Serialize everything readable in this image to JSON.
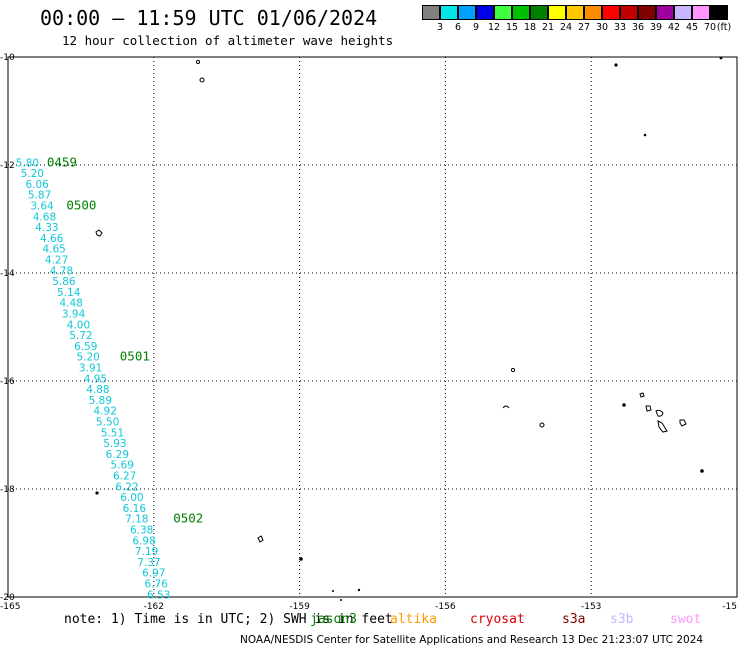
{
  "title": "00:00 — 11:59 UTC 01/06/2024",
  "subtitle": "12 hour collection of altimeter wave heights",
  "legend": {
    "unit": "(ft)",
    "bins": [
      {
        "label": "3",
        "color": "#808080"
      },
      {
        "label": "6",
        "color": "#00e6e6"
      },
      {
        "label": "9",
        "color": "#00a0ff"
      },
      {
        "label": "12",
        "color": "#0000e6"
      },
      {
        "label": "15",
        "color": "#40ff40"
      },
      {
        "label": "18",
        "color": "#00c000"
      },
      {
        "label": "21",
        "color": "#008000"
      },
      {
        "label": "24",
        "color": "#ffff00"
      },
      {
        "label": "27",
        "color": "#ffc800"
      },
      {
        "label": "30",
        "color": "#ff8c00"
      },
      {
        "label": "33",
        "color": "#ff0000"
      },
      {
        "label": "36",
        "color": "#c00000"
      },
      {
        "label": "39",
        "color": "#800000"
      },
      {
        "label": "42",
        "color": "#a000a0"
      },
      {
        "label": "45",
        "color": "#c8b4ff"
      },
      {
        "label": "70",
        "color": "#ff96ff"
      },
      {
        "label": "",
        "color": "#000000"
      }
    ]
  },
  "axes": {
    "lon_min": -165,
    "lon_max": -150,
    "lat_min": -20,
    "lat_max": -10,
    "y_ticks": [
      "-10",
      "-12",
      "-14",
      "-16",
      "-18",
      "-20"
    ],
    "x_ticks": [
      "-165",
      "-162",
      "-159",
      "-156",
      "-153",
      "-15"
    ],
    "grid": "dotted"
  },
  "track": {
    "color": "#10c8d8",
    "points": [
      {
        "lon": -164.6,
        "lat": -11.95,
        "value": "5.80"
      },
      {
        "lon": -164.5,
        "lat": -12.15,
        "value": "5.20"
      },
      {
        "lon": -164.4,
        "lat": -12.35,
        "value": "6.06"
      },
      {
        "lon": -164.35,
        "lat": -12.55,
        "value": "5.87"
      },
      {
        "lon": -164.3,
        "lat": -12.75,
        "value": "3.64"
      },
      {
        "lon": -164.25,
        "lat": -12.95,
        "value": "4.68"
      },
      {
        "lon": -164.2,
        "lat": -13.15,
        "value": "4.33"
      },
      {
        "lon": -164.1,
        "lat": -13.35,
        "value": "4.66"
      },
      {
        "lon": -164.05,
        "lat": -13.55,
        "value": "4.65"
      },
      {
        "lon": -164.0,
        "lat": -13.75,
        "value": "4.27"
      },
      {
        "lon": -163.9,
        "lat": -13.95,
        "value": "4.78"
      },
      {
        "lon": -163.85,
        "lat": -14.15,
        "value": "5.86"
      },
      {
        "lon": -163.75,
        "lat": -14.35,
        "value": "5.14"
      },
      {
        "lon": -163.7,
        "lat": -14.55,
        "value": "4.48"
      },
      {
        "lon": -163.65,
        "lat": -14.75,
        "value": "3.94"
      },
      {
        "lon": -163.55,
        "lat": -14.95,
        "value": "4.00"
      },
      {
        "lon": -163.5,
        "lat": -15.15,
        "value": "5.72"
      },
      {
        "lon": -163.4,
        "lat": -15.35,
        "value": "6.59"
      },
      {
        "lon": -163.35,
        "lat": -15.55,
        "value": "5.20"
      },
      {
        "lon": -163.3,
        "lat": -15.75,
        "value": "3.91"
      },
      {
        "lon": -163.2,
        "lat": -15.95,
        "value": "4.95"
      },
      {
        "lon": -163.15,
        "lat": -16.15,
        "value": "4.88"
      },
      {
        "lon": -163.1,
        "lat": -16.35,
        "value": "5.89"
      },
      {
        "lon": -163.0,
        "lat": -16.55,
        "value": "4.92"
      },
      {
        "lon": -162.95,
        "lat": -16.75,
        "value": "5.50"
      },
      {
        "lon": -162.85,
        "lat": -16.95,
        "value": "5.51"
      },
      {
        "lon": -162.8,
        "lat": -17.15,
        "value": "5.93"
      },
      {
        "lon": -162.75,
        "lat": -17.35,
        "value": "6.29"
      },
      {
        "lon": -162.65,
        "lat": -17.55,
        "value": "5.69"
      },
      {
        "lon": -162.6,
        "lat": -17.75,
        "value": "6.27"
      },
      {
        "lon": -162.55,
        "lat": -17.95,
        "value": "6.22"
      },
      {
        "lon": -162.45,
        "lat": -18.15,
        "value": "6.00"
      },
      {
        "lon": -162.4,
        "lat": -18.35,
        "value": "6.16"
      },
      {
        "lon": -162.35,
        "lat": -18.55,
        "value": "7.18"
      },
      {
        "lon": -162.25,
        "lat": -18.75,
        "value": "6.38"
      },
      {
        "lon": -162.2,
        "lat": -18.95,
        "value": "6.98"
      },
      {
        "lon": -162.15,
        "lat": -19.15,
        "value": "7.19"
      },
      {
        "lon": -162.1,
        "lat": -19.35,
        "value": "7.37"
      },
      {
        "lon": -162.0,
        "lat": -19.55,
        "value": "6.97"
      },
      {
        "lon": -161.95,
        "lat": -19.75,
        "value": "6.76"
      },
      {
        "lon": -161.9,
        "lat": -19.95,
        "value": "6.53"
      }
    ]
  },
  "pass_labels": [
    {
      "text": "0459",
      "lon": -164.2,
      "lat": -11.95
    },
    {
      "text": "0500",
      "lon": -163.8,
      "lat": -12.75
    },
    {
      "text": "0501",
      "lon": -162.7,
      "lat": -15.55
    },
    {
      "text": "0502",
      "lon": -161.6,
      "lat": -18.55
    }
  ],
  "footer": {
    "note": "note: 1) Time is in UTC; 2) SWH is in feet",
    "satellites": [
      {
        "name": "jason3",
        "color": "#008000"
      },
      {
        "name": "altika",
        "color": "#ff9900"
      },
      {
        "name": "cryosat",
        "color": "#dd0000"
      },
      {
        "name": "s3a",
        "color": "#800000"
      },
      {
        "name": "s3b",
        "color": "#c8b4ff"
      },
      {
        "name": "swot",
        "color": "#ff96ff"
      }
    ],
    "credit": "NOAA/NESDIS Center for Satellite Applications and Research   13 Dec 21:23:07 UTC 2024"
  }
}
